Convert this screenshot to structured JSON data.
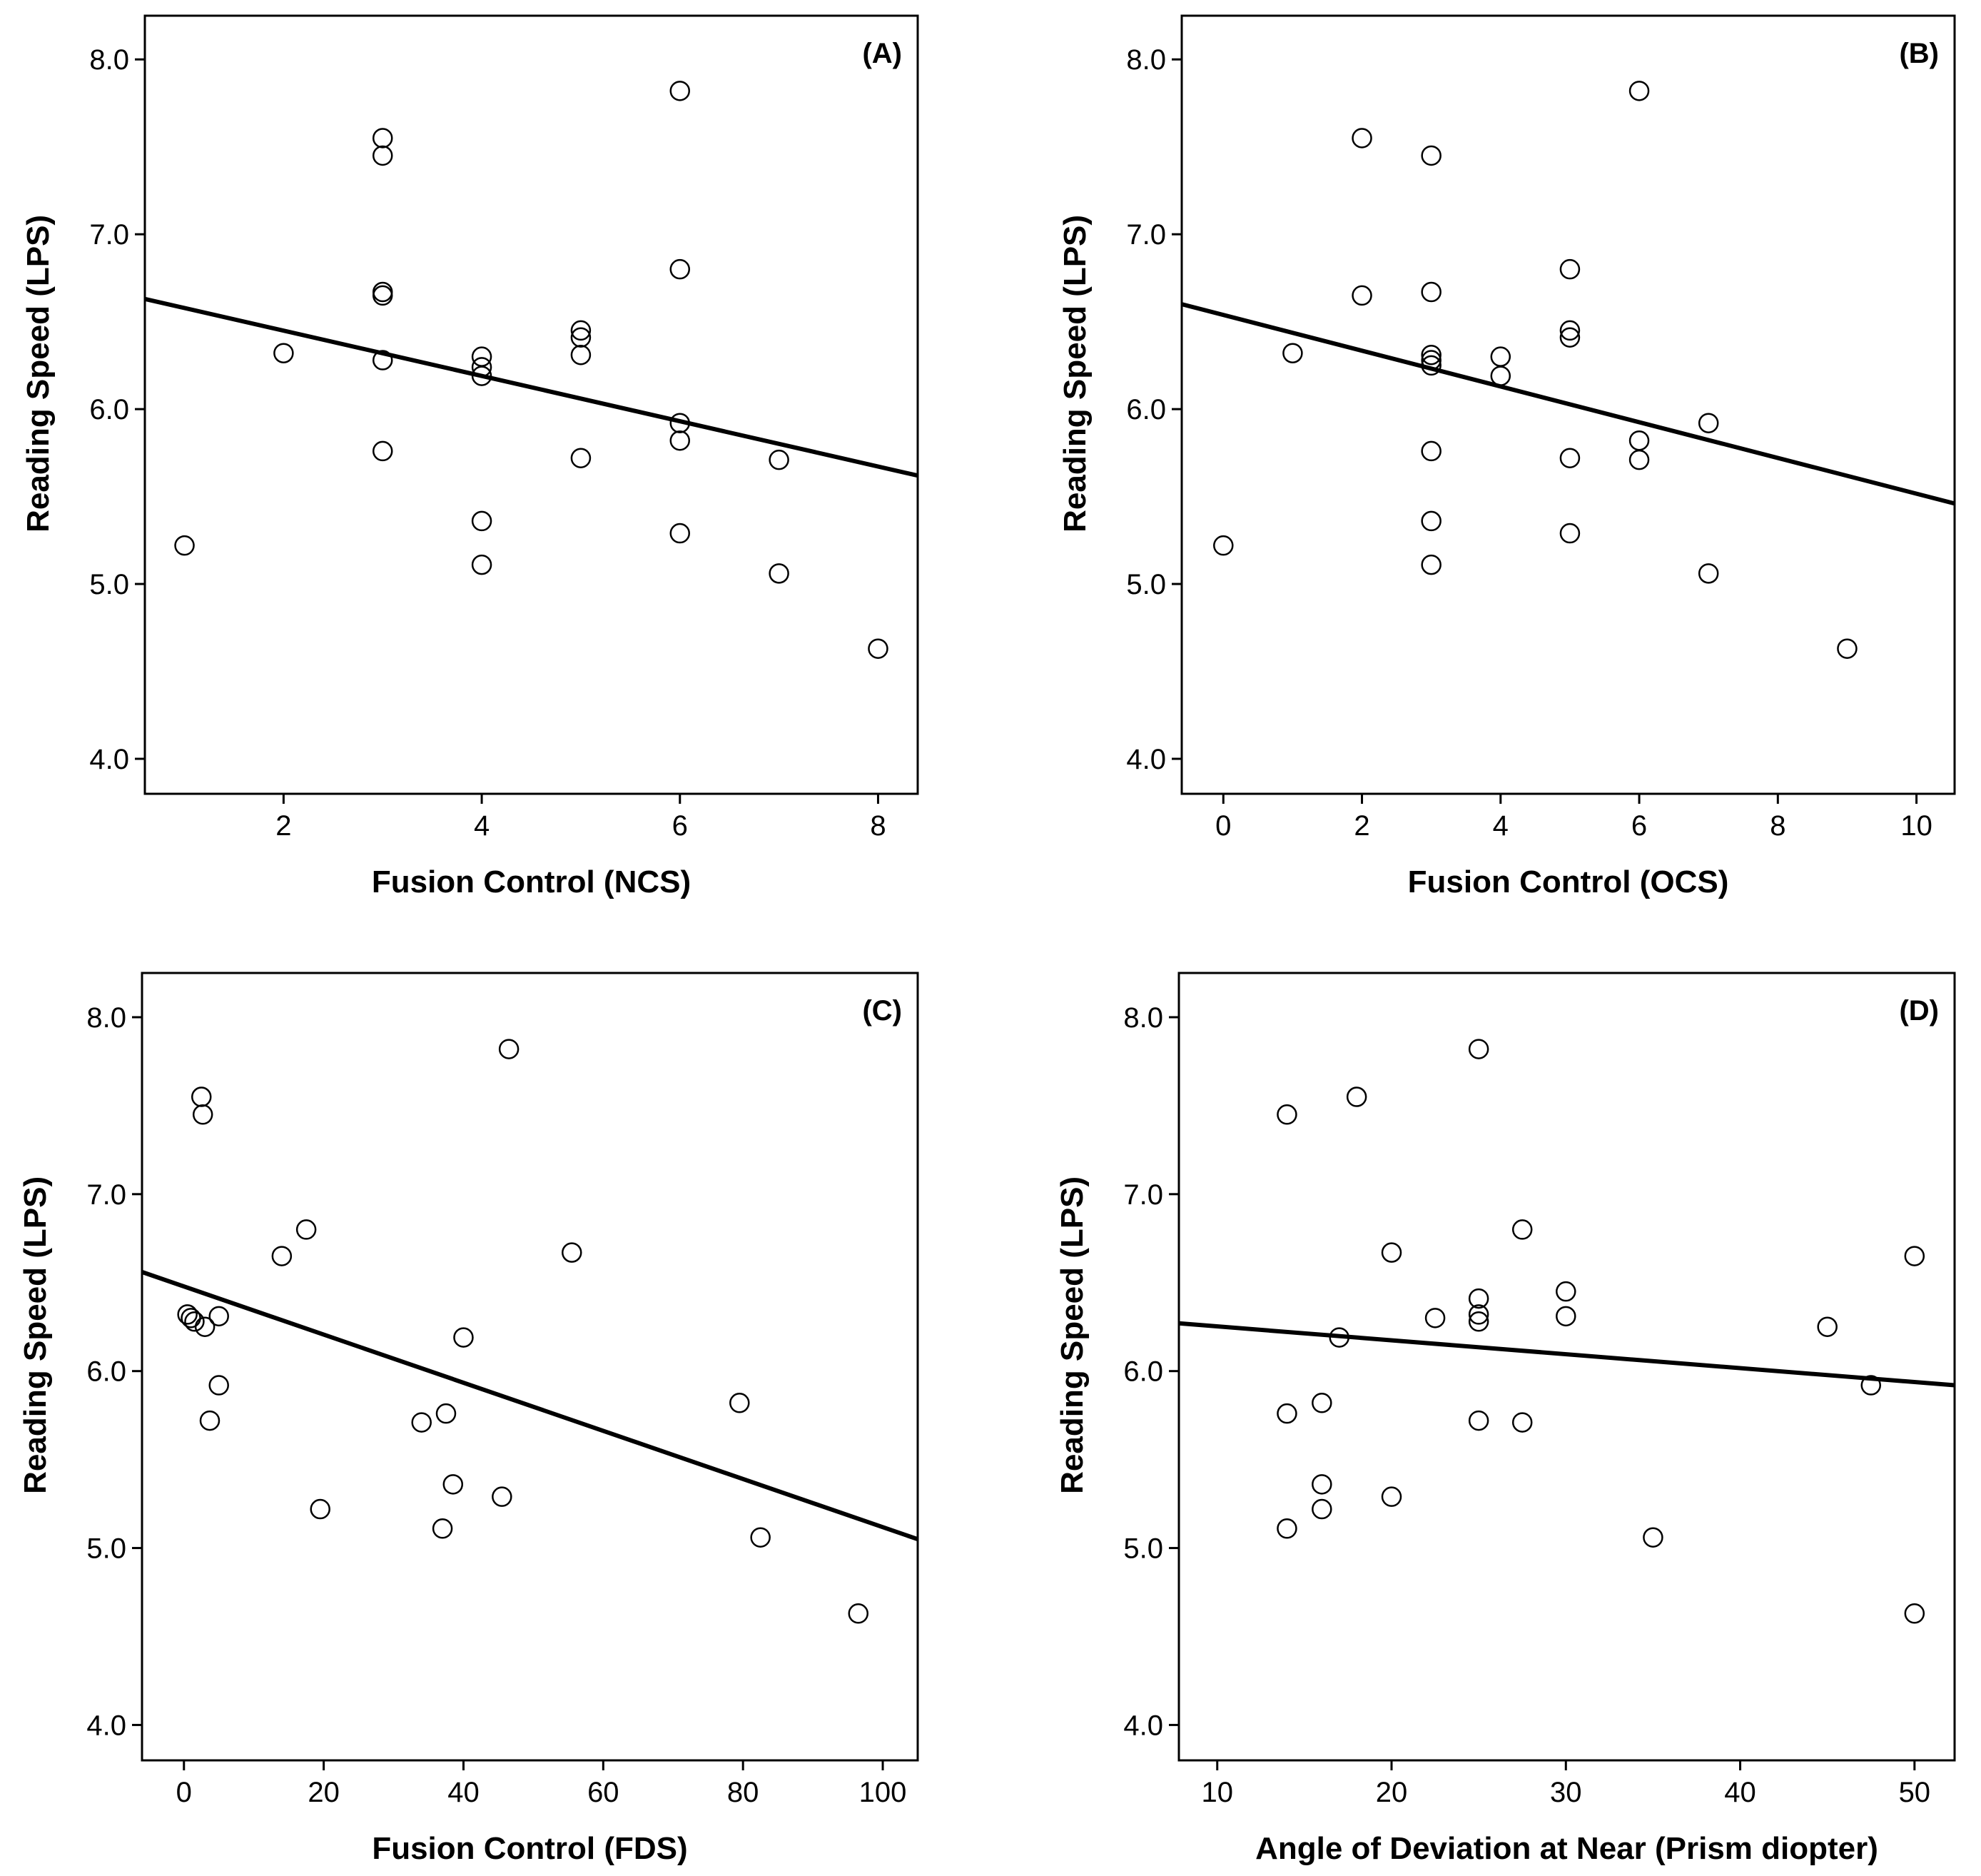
{
  "chart_data": [
    {
      "type": "scatter",
      "panel_label": "(A)",
      "xlabel": "Fusion Control (NCS)",
      "ylabel": "Reading Speed (LPS)",
      "xlim": [
        0.6,
        8.4
      ],
      "ylim": [
        3.8,
        8.25
      ],
      "xticks": [
        2,
        4,
        6,
        8
      ],
      "xtick_labels": [
        "2",
        "4",
        "6",
        "8"
      ],
      "yticks": [
        4.0,
        5.0,
        6.0,
        7.0,
        8.0
      ],
      "ytick_labels": [
        "4.0",
        "5.0",
        "6.0",
        "7.0",
        "8.0"
      ],
      "points": [
        [
          1,
          5.22
        ],
        [
          2,
          6.32
        ],
        [
          3,
          7.55
        ],
        [
          3,
          7.45
        ],
        [
          3,
          6.67
        ],
        [
          3,
          6.65
        ],
        [
          3,
          6.28
        ],
        [
          3,
          5.76
        ],
        [
          4,
          6.3
        ],
        [
          4,
          6.24
        ],
        [
          4,
          6.19
        ],
        [
          4,
          5.36
        ],
        [
          4,
          5.11
        ],
        [
          5,
          6.45
        ],
        [
          5,
          6.41
        ],
        [
          5,
          6.31
        ],
        [
          5,
          5.72
        ],
        [
          6,
          7.82
        ],
        [
          6,
          6.8
        ],
        [
          6,
          5.92
        ],
        [
          6,
          5.82
        ],
        [
          6,
          5.29
        ],
        [
          7,
          5.71
        ],
        [
          7,
          5.06
        ],
        [
          8,
          4.63
        ]
      ],
      "fit_line": [
        [
          0.6,
          6.63
        ],
        [
          8.4,
          5.62
        ]
      ]
    },
    {
      "type": "scatter",
      "panel_label": "(B)",
      "xlabel": "Fusion Control (OCS)",
      "ylabel": "Reading Speed (LPS)",
      "xlim": [
        -0.6,
        10.55
      ],
      "ylim": [
        3.8,
        8.25
      ],
      "xticks": [
        0,
        2,
        4,
        6,
        8,
        10
      ],
      "xtick_labels": [
        "0",
        "2",
        "4",
        "6",
        "8",
        "10"
      ],
      "yticks": [
        4.0,
        5.0,
        6.0,
        7.0,
        8.0
      ],
      "ytick_labels": [
        "4.0",
        "5.0",
        "6.0",
        "7.0",
        "8.0"
      ],
      "points": [
        [
          0,
          5.22
        ],
        [
          1,
          6.32
        ],
        [
          2,
          7.55
        ],
        [
          2,
          6.65
        ],
        [
          3,
          7.45
        ],
        [
          3,
          6.67
        ],
        [
          3,
          6.31
        ],
        [
          3,
          6.28
        ],
        [
          3,
          6.25
        ],
        [
          3,
          5.76
        ],
        [
          3,
          5.36
        ],
        [
          3,
          5.11
        ],
        [
          4,
          6.3
        ],
        [
          4,
          6.19
        ],
        [
          5,
          6.8
        ],
        [
          5,
          6.45
        ],
        [
          5,
          6.41
        ],
        [
          5,
          5.72
        ],
        [
          5,
          5.29
        ],
        [
          6,
          7.82
        ],
        [
          6,
          5.82
        ],
        [
          6,
          5.71
        ],
        [
          7,
          5.92
        ],
        [
          7,
          5.06
        ],
        [
          9,
          4.63
        ]
      ],
      "fit_line": [
        [
          -0.6,
          6.6
        ],
        [
          10.55,
          5.46
        ]
      ]
    },
    {
      "type": "scatter",
      "panel_label": "(C)",
      "xlabel": "Fusion Control (FDS)",
      "ylabel": "Reading Speed (LPS)",
      "xlim": [
        -6,
        105
      ],
      "ylim": [
        3.8,
        8.25
      ],
      "xticks": [
        0,
        20,
        40,
        60,
        80,
        100
      ],
      "xtick_labels": [
        "0",
        "20",
        "40",
        "60",
        "80",
        "100"
      ],
      "yticks": [
        4.0,
        5.0,
        6.0,
        7.0,
        8.0
      ],
      "ytick_labels": [
        "4.0",
        "5.0",
        "6.0",
        "7.0",
        "8.0"
      ],
      "points": [
        [
          0.5,
          6.32
        ],
        [
          1,
          6.3
        ],
        [
          1.5,
          6.28
        ],
        [
          2.5,
          7.55
        ],
        [
          2.7,
          7.45
        ],
        [
          3,
          6.25
        ],
        [
          3.7,
          5.72
        ],
        [
          5,
          5.92
        ],
        [
          5,
          6.31
        ],
        [
          14,
          6.65
        ],
        [
          17.5,
          6.8
        ],
        [
          19.5,
          5.22
        ],
        [
          34,
          5.71
        ],
        [
          37,
          5.11
        ],
        [
          37.5,
          5.76
        ],
        [
          38.5,
          5.36
        ],
        [
          40,
          6.19
        ],
        [
          45.5,
          5.29
        ],
        [
          46.5,
          7.82
        ],
        [
          55.5,
          6.67
        ],
        [
          79.5,
          5.82
        ],
        [
          82.5,
          5.06
        ],
        [
          96.5,
          4.63
        ]
      ],
      "fit_line": [
        [
          -6,
          6.56
        ],
        [
          105,
          5.05
        ]
      ]
    },
    {
      "type": "scatter",
      "panel_label": "(D)",
      "xlabel": "Angle of Deviation at Near (Prism diopter)",
      "ylabel": "Reading Speed (LPS)",
      "xlim": [
        7.8,
        52.3
      ],
      "ylim": [
        3.8,
        8.25
      ],
      "xticks": [
        10,
        20,
        30,
        40,
        50
      ],
      "xtick_labels": [
        "10",
        "20",
        "30",
        "40",
        "50"
      ],
      "yticks": [
        4.0,
        5.0,
        6.0,
        7.0,
        8.0
      ],
      "ytick_labels": [
        "4.0",
        "5.0",
        "6.0",
        "7.0",
        "8.0"
      ],
      "points": [
        [
          14,
          7.45
        ],
        [
          14,
          5.76
        ],
        [
          14,
          5.11
        ],
        [
          16,
          5.82
        ],
        [
          16,
          5.36
        ],
        [
          16,
          5.22
        ],
        [
          17,
          6.19
        ],
        [
          18,
          7.55
        ],
        [
          20,
          6.67
        ],
        [
          20,
          5.29
        ],
        [
          22.5,
          6.3
        ],
        [
          25,
          7.82
        ],
        [
          25,
          6.41
        ],
        [
          25,
          6.32
        ],
        [
          25,
          6.28
        ],
        [
          25,
          5.72
        ],
        [
          27.5,
          6.8
        ],
        [
          27.5,
          5.71
        ],
        [
          30,
          6.45
        ],
        [
          30,
          6.31
        ],
        [
          35,
          5.06
        ],
        [
          45,
          6.25
        ],
        [
          47.5,
          5.92
        ],
        [
          50,
          6.65
        ],
        [
          50,
          4.63
        ]
      ],
      "fit_line": [
        [
          7.8,
          6.27
        ],
        [
          52.3,
          5.92
        ]
      ]
    }
  ]
}
